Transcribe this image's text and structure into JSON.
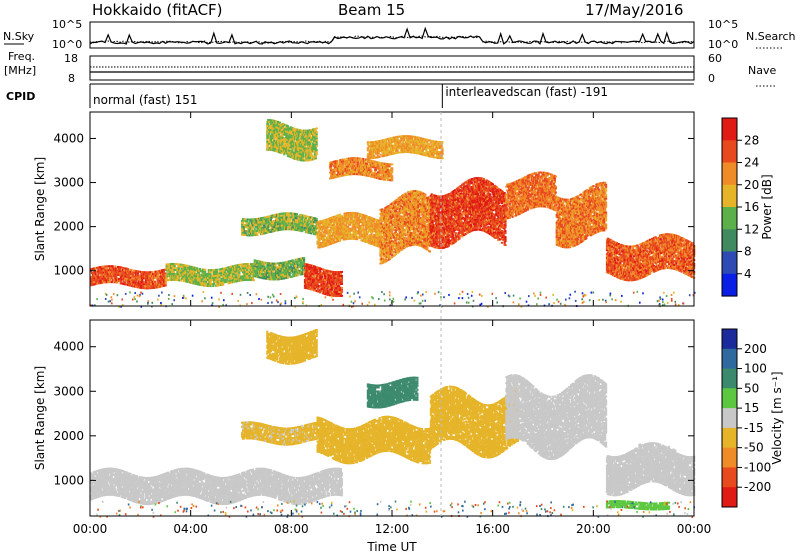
{
  "header": {
    "radar": "Hokkaido (fitACF)",
    "beam": "Beam 15",
    "date": "17/May/2016"
  },
  "noise_panel": {
    "left_label": "N.Sky",
    "right_label": "N.Search",
    "left_ticks": [
      "10^5",
      "10^0"
    ],
    "right_ticks": [
      "10^5",
      "10^0"
    ]
  },
  "freq_panel": {
    "left_label_1": "Freq.",
    "left_label_2": "[MHz]",
    "left_ticks": [
      "18",
      "8"
    ],
    "right_label": "Nave",
    "right_ticks": [
      "60",
      "0"
    ]
  },
  "cpid": {
    "label": "CPID",
    "modes": [
      {
        "name": "normal (fast) 151",
        "start_hour": 0
      },
      {
        "name": "interleavedscan (fast) -191",
        "start_hour": 14
      }
    ]
  },
  "chart_data": [
    {
      "type": "heatmap",
      "panel": "power",
      "ylabel": "Slant Range [km]",
      "xlabel": "",
      "x_ticks": [
        "00:00",
        "04:00",
        "08:00",
        "12:00",
        "16:00",
        "20:00",
        "00:00"
      ],
      "y_ticks": [
        "1000",
        "2000",
        "3000",
        "4000"
      ],
      "ylim": [
        200,
        4600
      ],
      "colorbar": {
        "label": "Power [dB]",
        "ticks": [
          "4",
          "8",
          "12",
          "16",
          "20",
          "24",
          "28"
        ],
        "colors": [
          "#0a1ee6",
          "#2e4ab4",
          "#3f8a5e",
          "#5cb04a",
          "#e6b428",
          "#f08c28",
          "#e84a1e",
          "#e01a14"
        ]
      },
      "echo_bands": [
        {
          "h0": 0,
          "h1": 3,
          "r0": 650,
          "r1": 1050,
          "level": 26
        },
        {
          "h0": 3,
          "h1": 6.5,
          "r0": 700,
          "r1": 1100,
          "level": 16
        },
        {
          "h0": 6.5,
          "h1": 8.5,
          "r0": 850,
          "r1": 1250,
          "level": 14
        },
        {
          "h0": 8.5,
          "h1": 10,
          "r0": 500,
          "r1": 1050,
          "level": 27
        },
        {
          "h0": 6,
          "h1": 9,
          "r0": 1850,
          "r1": 2250,
          "level": 15
        },
        {
          "h0": 9,
          "h1": 11.5,
          "r0": 1600,
          "r1": 2200,
          "level": 20
        },
        {
          "h0": 11.5,
          "h1": 13.5,
          "r0": 1350,
          "r1": 2600,
          "level": 22
        },
        {
          "h0": 13.5,
          "h1": 16.5,
          "r0": 1700,
          "r1": 2900,
          "level": 27
        },
        {
          "h0": 16.5,
          "h1": 18.5,
          "r0": 2300,
          "r1": 3100,
          "level": 24
        },
        {
          "h0": 18.5,
          "h1": 20.5,
          "r0": 1700,
          "r1": 2800,
          "level": 23
        },
        {
          "h0": 20.5,
          "h1": 24,
          "r0": 900,
          "r1": 1700,
          "level": 25
        },
        {
          "h0": 9.5,
          "h1": 12,
          "r0": 3100,
          "r1": 3500,
          "level": 22
        },
        {
          "h0": 7,
          "h1": 9,
          "r0": 3600,
          "r1": 4300,
          "level": 16
        },
        {
          "h0": 11,
          "h1": 14,
          "r0": 3600,
          "r1": 4000,
          "level": 20
        }
      ]
    },
    {
      "type": "heatmap",
      "panel": "velocity",
      "ylabel": "Slant Range [km]",
      "xlabel": "Time UT",
      "x_ticks": [
        "00:00",
        "04:00",
        "08:00",
        "12:00",
        "16:00",
        "20:00",
        "00:00"
      ],
      "y_ticks": [
        "1000",
        "2000",
        "3000",
        "4000"
      ],
      "ylim": [
        200,
        4600
      ],
      "colorbar": {
        "label": "Velocity [m s⁻¹]",
        "ticks": [
          "200",
          "100",
          "50",
          "15",
          "-15",
          "-50",
          "-100",
          "-200"
        ],
        "colors": [
          "#1a2a9a",
          "#2e6a9e",
          "#3c8a6e",
          "#5cc840",
          "#c8c8c8",
          "#e6b428",
          "#f08c28",
          "#e84a1e",
          "#e01a14"
        ]
      },
      "echo_bands": [
        {
          "h0": 0,
          "h1": 10,
          "r0": 550,
          "r1": 1150,
          "level": 0
        },
        {
          "h0": 6,
          "h1": 9,
          "r0": 1850,
          "r1": 2250,
          "level": -20
        },
        {
          "h0": 9,
          "h1": 13.5,
          "r0": 1500,
          "r1": 2300,
          "level": -25
        },
        {
          "h0": 13.5,
          "h1": 17,
          "r0": 1700,
          "r1": 2900,
          "level": -30
        },
        {
          "h0": 16.5,
          "h1": 20.5,
          "r0": 1700,
          "r1": 3100,
          "level": 0
        },
        {
          "h0": 20.5,
          "h1": 24,
          "r0": 800,
          "r1": 1700,
          "level": 0
        },
        {
          "h0": 11,
          "h1": 13,
          "r0": 2700,
          "r1": 3200,
          "level": 60
        },
        {
          "h0": 7,
          "h1": 9,
          "r0": 3700,
          "r1": 4300,
          "level": -25
        },
        {
          "h0": 20.5,
          "h1": 23,
          "r0": 350,
          "r1": 500,
          "level": 30
        }
      ]
    }
  ]
}
